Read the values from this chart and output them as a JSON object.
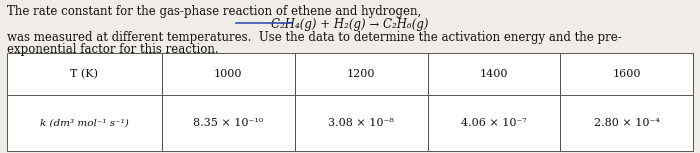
{
  "line1": "The rate constant for the gas-phase reaction of ethene and hydrogen,",
  "equation": "C₂H₄(g) + H₂(g) → C₂H₆(g)",
  "line2": "was measured at different temperatures.  Use the data to determine the activation energy and the pre-",
  "line3": "exponential factor for this reaction.",
  "row1_col0": "T (K)",
  "row1_cols": [
    "1000",
    "1200",
    "1400",
    "1600"
  ],
  "row2_col0": "k (dm³ mol⁻¹ s⁻¹)",
  "row2_cols": [
    "8.35 × 10⁻¹⁰",
    "3.08 × 10⁻⁸",
    "4.06 × 10⁻⁷",
    "2.80 × 10⁻⁴"
  ],
  "underline_color": "#2244aa",
  "bg_color": "#f0ede8",
  "text_color": "#111111",
  "body_fs": 8.5,
  "table_fs": 8.0
}
